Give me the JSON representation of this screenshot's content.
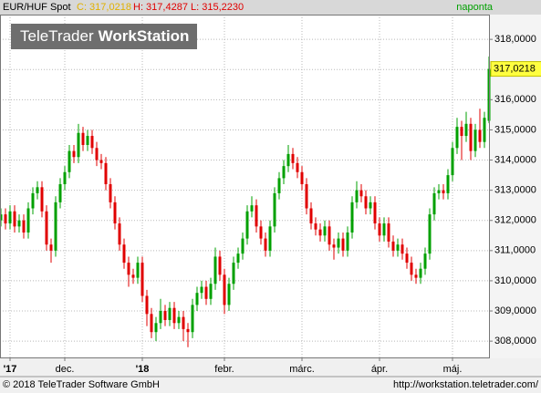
{
  "header": {
    "symbol": "EUR/HUF Spot",
    "close": "C: 317,0218",
    "high_low": "H: 317,4287 L: 315,2230",
    "period": "naponta"
  },
  "watermark": [
    "TeleTrader",
    "WorkStation"
  ],
  "footer": {
    "copyright": "© 2018 TeleTrader Software GmbH",
    "url": "http://workstation.teletrader.com/"
  },
  "chart_data": {
    "type": "candlestick",
    "last_label": "317,0218",
    "up_color": "#00a000",
    "down_color": "#e00000",
    "grid": true,
    "xlim": [
      -0.2,
      107.2
    ],
    "xticks": [
      {
        "value": 2,
        "label": "'17"
      },
      {
        "value": 14,
        "label": "dec."
      },
      {
        "value": 31,
        "label": "'18"
      },
      {
        "value": 49,
        "label": "febr."
      },
      {
        "value": 66,
        "label": "márc."
      },
      {
        "value": 83,
        "label": "ápr."
      },
      {
        "value": 99,
        "label": "máj."
      }
    ],
    "ylim": [
      307.43,
      318.82
    ],
    "yticks": [
      {
        "value": 308,
        "label": "308,0000"
      },
      {
        "value": 309,
        "label": "309,0000"
      },
      {
        "value": 310,
        "label": "310,0000"
      },
      {
        "value": 311,
        "label": "311,0000"
      },
      {
        "value": 312,
        "label": "312,0000"
      },
      {
        "value": 313,
        "label": "313,0000"
      },
      {
        "value": 314,
        "label": "314,0000"
      },
      {
        "value": 315,
        "label": "315,0000"
      },
      {
        "value": 316,
        "label": "316,0000"
      },
      {
        "value": 317,
        "label": "317,0000"
      },
      {
        "value": 318,
        "label": "318,0000"
      }
    ],
    "open": [
      312.0,
      312.2,
      311.9,
      312.3,
      311.8,
      312.0,
      311.6,
      312.4,
      312.9,
      313.1,
      312.3,
      311.2,
      311.0,
      312.6,
      313.2,
      313.6,
      314.3,
      314.1,
      314.9,
      314.5,
      314.8,
      314.4,
      314.0,
      313.9,
      313.2,
      312.6,
      311.9,
      311.2,
      310.6,
      310.2,
      310.1,
      310.6,
      309.5,
      308.9,
      308.3,
      308.6,
      309.0,
      308.7,
      309.1,
      308.6,
      308.8,
      308.4,
      308.3,
      309.2,
      309.6,
      309.8,
      309.4,
      309.9,
      310.8,
      310.2,
      309.2,
      309.9,
      310.6,
      310.9,
      311.4,
      312.3,
      312.5,
      311.8,
      311.4,
      311.0,
      311.8,
      312.9,
      313.4,
      313.8,
      314.2,
      313.9,
      313.6,
      313.2,
      312.4,
      311.9,
      311.7,
      311.5,
      311.8,
      311.2,
      311.1,
      311.4,
      311.0,
      311.6,
      312.6,
      313.0,
      312.8,
      312.4,
      312.6,
      311.9,
      311.5,
      311.9,
      311.3,
      311.0,
      311.2,
      310.9,
      310.6,
      310.2,
      310.1,
      310.4,
      310.9,
      312.2,
      312.9,
      313.0,
      312.9,
      313.5,
      314.4,
      315.1,
      314.8,
      315.2,
      314.3,
      315.0,
      314.6,
      315.3
    ],
    "high": [
      312.4,
      312.4,
      312.5,
      312.5,
      312.2,
      312.2,
      312.6,
      313.1,
      313.3,
      313.3,
      312.5,
      311.4,
      312.8,
      313.4,
      313.8,
      314.5,
      314.5,
      315.2,
      315.1,
      315.0,
      315.0,
      314.6,
      314.2,
      314.1,
      313.4,
      312.8,
      312.1,
      311.4,
      310.8,
      310.4,
      310.8,
      310.8,
      309.7,
      309.1,
      308.8,
      309.4,
      309.2,
      309.3,
      309.3,
      309.0,
      309.0,
      308.6,
      309.4,
      309.8,
      310.0,
      310.0,
      310.1,
      311.1,
      311.0,
      310.4,
      310.1,
      310.8,
      311.1,
      311.6,
      312.5,
      312.8,
      312.7,
      312.0,
      311.6,
      312.0,
      313.1,
      313.6,
      314.0,
      314.5,
      314.4,
      314.1,
      313.8,
      313.4,
      312.6,
      312.1,
      311.9,
      312.0,
      312.0,
      311.4,
      311.6,
      311.6,
      311.8,
      312.8,
      313.3,
      313.2,
      313.0,
      312.8,
      312.8,
      312.1,
      312.1,
      312.1,
      311.5,
      311.4,
      311.4,
      311.1,
      310.8,
      310.4,
      310.6,
      311.1,
      312.4,
      313.1,
      313.2,
      313.2,
      313.7,
      314.6,
      315.4,
      315.3,
      315.6,
      315.4,
      315.2,
      315.7,
      315.6,
      317.43
    ],
    "low": [
      311.8,
      311.7,
      311.7,
      311.6,
      311.6,
      311.4,
      311.4,
      312.2,
      312.7,
      312.1,
      311.0,
      310.6,
      310.8,
      312.4,
      313.0,
      313.4,
      313.9,
      313.9,
      314.3,
      314.3,
      314.2,
      313.8,
      313.7,
      313.0,
      312.4,
      311.7,
      311.0,
      310.4,
      309.8,
      309.9,
      309.9,
      309.3,
      308.5,
      308.1,
      308.0,
      308.4,
      308.5,
      308.5,
      308.4,
      308.4,
      308.0,
      307.8,
      308.1,
      309.0,
      309.4,
      309.2,
      309.2,
      309.7,
      310.0,
      308.9,
      309.0,
      309.7,
      310.4,
      310.7,
      311.2,
      312.1,
      311.6,
      311.2,
      310.8,
      310.8,
      311.6,
      312.7,
      313.2,
      313.6,
      313.7,
      313.4,
      313.0,
      312.2,
      311.7,
      311.5,
      311.3,
      311.3,
      311.0,
      310.7,
      310.9,
      310.8,
      310.8,
      311.4,
      312.4,
      312.6,
      312.2,
      312.2,
      311.7,
      311.3,
      311.3,
      311.1,
      310.8,
      310.8,
      310.7,
      310.4,
      310.0,
      309.9,
      309.9,
      310.2,
      310.7,
      312.0,
      312.7,
      312.7,
      312.7,
      313.3,
      314.2,
      314.0,
      314.6,
      314.0,
      314.1,
      314.4,
      314.4,
      315.22
    ],
    "close": [
      312.2,
      311.9,
      312.3,
      311.8,
      312.0,
      311.6,
      312.4,
      312.9,
      313.1,
      312.3,
      311.2,
      311.0,
      312.6,
      313.2,
      313.6,
      314.3,
      314.1,
      314.9,
      314.5,
      314.8,
      314.4,
      314.0,
      313.9,
      313.2,
      312.6,
      311.9,
      311.2,
      310.6,
      310.2,
      310.1,
      310.6,
      309.5,
      308.9,
      308.3,
      308.6,
      309.0,
      308.7,
      309.1,
      308.6,
      308.8,
      308.4,
      308.3,
      309.2,
      309.6,
      309.8,
      309.4,
      309.9,
      310.8,
      310.2,
      309.2,
      309.9,
      310.6,
      310.9,
      311.4,
      312.3,
      312.5,
      311.8,
      311.4,
      311.0,
      311.8,
      312.9,
      313.4,
      313.8,
      314.2,
      313.9,
      313.6,
      313.2,
      312.4,
      311.9,
      311.7,
      311.5,
      311.8,
      311.2,
      311.1,
      311.4,
      311.0,
      311.6,
      312.6,
      313.0,
      312.8,
      312.4,
      312.6,
      311.9,
      311.5,
      311.9,
      311.3,
      311.0,
      311.2,
      310.9,
      310.6,
      310.2,
      310.1,
      310.4,
      310.9,
      312.2,
      312.9,
      313.0,
      312.9,
      313.5,
      314.4,
      315.1,
      314.8,
      315.2,
      314.3,
      315.0,
      314.6,
      315.4,
      317.02
    ]
  }
}
